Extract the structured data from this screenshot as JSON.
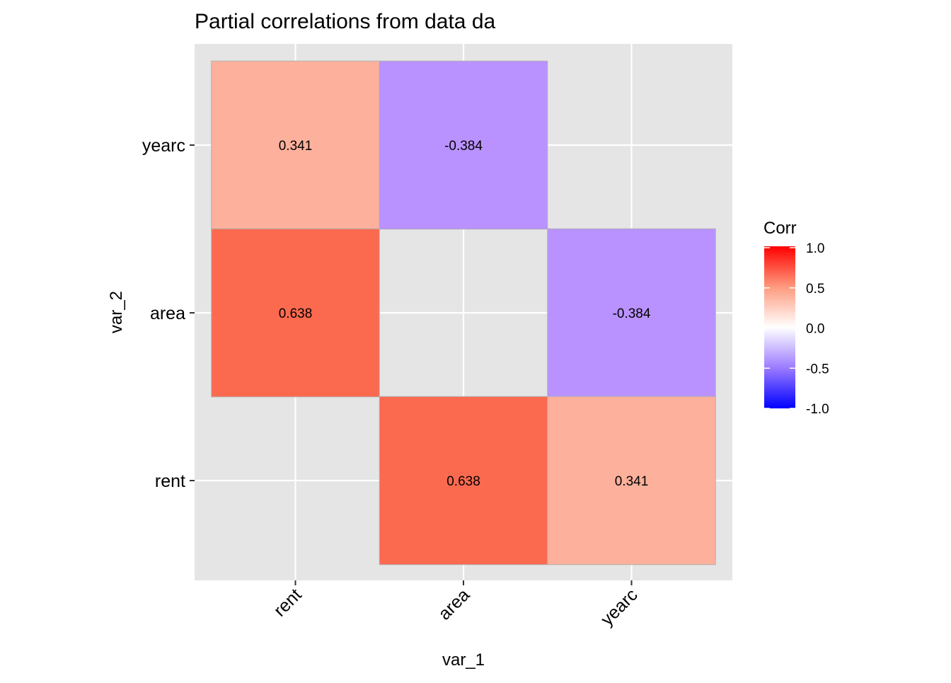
{
  "chart_data": {
    "type": "heatmap",
    "title": "Partial correlations from data da",
    "xlabel": "var_1",
    "ylabel": "var_2",
    "x_categories": [
      "rent",
      "area",
      "yearc"
    ],
    "y_categories": [
      "rent",
      "area",
      "yearc"
    ],
    "cells": [
      {
        "x": "rent",
        "y": "yearc",
        "value": 0.341,
        "label": "0.341",
        "fill": "#FDB09B"
      },
      {
        "x": "area",
        "y": "yearc",
        "value": -0.384,
        "label": "-0.384",
        "fill": "#B992FF"
      },
      {
        "x": "rent",
        "y": "area",
        "value": 0.638,
        "label": "0.638",
        "fill": "#FB6A4F"
      },
      {
        "x": "yearc",
        "y": "area",
        "value": -0.384,
        "label": "-0.384",
        "fill": "#B992FF"
      },
      {
        "x": "area",
        "y": "rent",
        "value": 0.638,
        "label": "0.638",
        "fill": "#FB6A4F"
      },
      {
        "x": "yearc",
        "y": "rent",
        "value": 0.341,
        "label": "0.341",
        "fill": "#FDB09B"
      }
    ],
    "legend": {
      "title": "Corr",
      "position": "right",
      "range": [
        -1,
        1
      ],
      "ticks": [
        1.0,
        0.5,
        0.0,
        -0.5,
        -1.0
      ],
      "tick_labels": [
        "1.0",
        "0.5",
        "0.0",
        "-0.5",
        "-1.0"
      ],
      "colors": {
        "low": "#0000FF",
        "mid": "#FFFFFF",
        "high": "#FF0000"
      }
    },
    "panel_background": "#E5E5E5",
    "grid": true
  }
}
